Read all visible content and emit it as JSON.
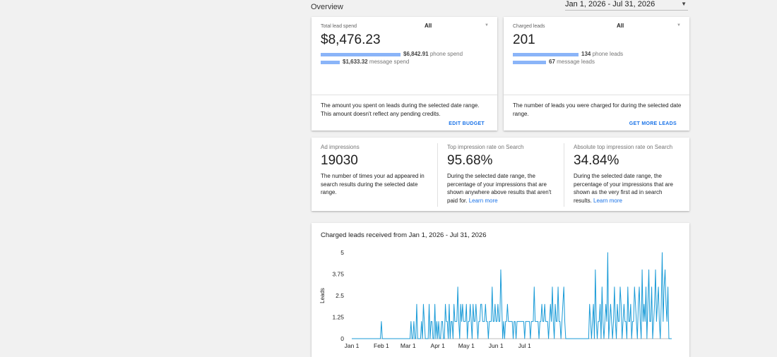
{
  "header": {
    "overview_label": "Overview",
    "date_range": "Jan 1, 2026 - Jul 31, 2026"
  },
  "spend_card": {
    "title": "Total lead spend",
    "filter": "All",
    "value": "$8,476.23",
    "phone_amount": "$6,842.91",
    "phone_label": " phone spend",
    "phone_fraction": 0.807,
    "message_amount": "$1,633.32",
    "message_label": " message spend",
    "message_fraction": 0.193,
    "description": "The amount you spent on leads during the selected date range. This amount doesn't reflect any pending credits.",
    "action": "EDIT BUDGET"
  },
  "leads_card": {
    "title": "Charged leads",
    "filter": "All",
    "value": "201",
    "phone_amount": "134",
    "phone_label": " phone leads",
    "phone_fraction": 0.667,
    "message_amount": "67",
    "message_label": " message leads",
    "message_fraction": 0.333,
    "description": "The number of leads you were charged for during the selected date range.",
    "action": "GET MORE LEADS"
  },
  "metrics": [
    {
      "title": "Ad impressions",
      "value": "19030",
      "description": "The number of times your ad appeared in search results during the selected date range.",
      "link": ""
    },
    {
      "title": "Top impression rate on Search",
      "value": "95.68%",
      "description": "During the selected date range, the percentage of your impressions that are shown anywhere above results that aren't paid for. ",
      "link": "Learn more"
    },
    {
      "title": "Absolute top impression rate on Search",
      "value": "34.84%",
      "description": "During the selected date range, the percentage of your impressions that are shown as the very first ad in search results. ",
      "link": "Learn more"
    }
  ],
  "chart_title": "Charged leads received from Jan 1, 2026 - Jul 31, 2026",
  "chart_data": {
    "type": "line",
    "title": "Charged leads received from Jan 1, 2026 - Jul 31, 2026",
    "ylabel": "Leads",
    "xlabel": "",
    "ylim": [
      0,
      5
    ],
    "yticks": [
      "0",
      "1.25",
      "2.5",
      "3.75",
      "5"
    ],
    "xticks": [
      "Jan 1",
      "Feb 1",
      "Mar 1",
      "Apr 1",
      "May 1",
      "Jun 1",
      "Jul 1"
    ],
    "x_start": "2026-01-01",
    "color": "#1a9bd7",
    "series": [
      {
        "values": [
          0,
          0,
          0,
          0,
          0,
          0,
          0,
          0,
          0,
          0,
          0,
          0,
          0,
          0,
          0,
          0,
          0,
          0,
          0,
          0,
          0,
          0,
          0,
          0,
          0,
          0,
          0,
          0,
          0,
          0,
          0,
          1,
          0,
          0,
          0,
          0,
          0,
          0,
          0,
          0,
          0,
          0,
          0,
          0,
          0,
          0,
          0,
          0,
          0,
          0,
          0,
          0,
          0,
          0,
          0,
          0,
          0,
          0,
          0,
          0,
          0,
          0,
          1,
          0,
          0,
          1,
          0,
          0,
          2,
          0,
          0,
          0,
          0,
          1,
          0,
          2,
          1,
          0,
          0,
          0,
          0,
          2,
          0,
          1,
          1,
          0,
          0,
          2,
          0,
          1,
          0,
          1,
          0,
          0,
          1,
          1,
          0,
          0,
          2,
          1,
          1,
          0,
          2,
          0,
          1,
          1,
          0,
          2,
          1,
          1,
          1,
          3,
          1,
          0,
          2,
          1,
          2,
          1,
          1,
          1,
          2,
          0,
          1,
          1,
          2,
          1,
          0,
          2,
          1,
          1,
          2,
          1,
          0,
          1,
          1,
          2,
          2,
          1,
          1,
          1,
          2,
          1,
          1,
          0,
          1,
          1,
          1,
          3,
          1,
          1,
          2,
          1,
          1,
          2,
          1,
          1,
          4,
          2,
          0,
          1,
          0,
          1,
          1,
          2,
          1,
          1,
          1,
          1,
          1,
          0,
          1,
          1,
          0,
          1,
          1,
          1,
          1,
          1,
          1,
          1,
          1,
          0,
          1,
          1,
          1,
          1,
          1,
          0,
          1,
          1,
          1,
          3,
          1,
          1,
          1,
          1,
          0,
          1,
          1,
          2,
          1,
          1,
          2,
          1,
          1,
          1,
          0,
          1,
          2,
          1,
          3,
          1,
          0,
          2,
          1,
          1,
          3,
          1,
          1,
          0,
          1,
          2,
          3,
          1,
          0,
          0,
          0,
          0,
          0,
          0,
          0,
          0,
          0,
          0,
          0,
          0,
          0,
          0,
          0,
          0,
          0,
          0,
          0,
          0,
          0,
          0,
          0,
          0,
          0,
          2,
          1,
          0,
          1,
          2,
          0,
          4,
          1,
          0,
          1,
          1,
          2,
          0,
          3,
          1,
          0,
          1,
          2,
          1,
          5,
          0,
          1,
          2,
          1,
          0,
          1,
          3,
          1,
          0,
          2,
          1,
          1,
          3,
          2,
          0,
          1,
          2,
          1,
          1,
          0,
          3,
          1,
          1,
          2,
          0,
          1,
          1,
          3,
          2,
          1,
          0,
          2,
          3,
          1,
          0,
          4,
          1,
          2,
          1,
          3,
          0,
          2,
          4,
          1,
          1,
          3,
          0,
          1,
          2,
          4,
          1,
          2,
          3,
          1,
          0,
          2,
          5,
          1,
          3,
          4,
          2,
          1,
          3,
          0,
          0,
          0,
          0
        ]
      }
    ]
  }
}
